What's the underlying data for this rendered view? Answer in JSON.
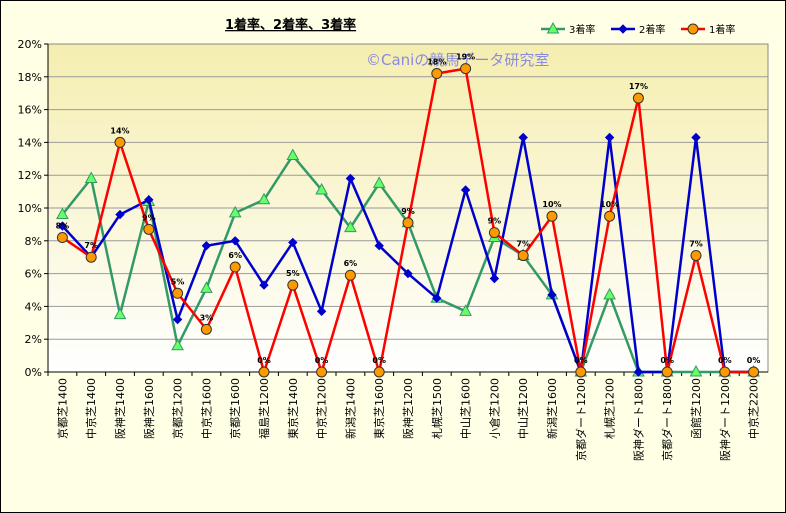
{
  "chart_data": {
    "type": "line",
    "title": "1着率、2着率、3着率",
    "watermark": "©Caniの競馬データ研究室",
    "categories": [
      "京都芝1400",
      "中京芝1400",
      "阪神芝1400",
      "阪神芝1600",
      "京都芝1200",
      "中京芝1600",
      "京都芝1600",
      "福島芝1200",
      "東京芝1400",
      "中京芝1200",
      "新潟芝1400",
      "東京芝1600",
      "阪神芝1200",
      "札幌芝1500",
      "中山芝1600",
      "小倉芝1200",
      "中山芝1200",
      "新潟芝1600",
      "京都ダート1200",
      "札幌芝1200",
      "阪神ダート1800",
      "京都ダート1800",
      "函館芝1200",
      "阪神ダート1200",
      "中京芝2200"
    ],
    "ylim": [
      0,
      20
    ],
    "yticks": [
      0,
      2,
      4,
      6,
      8,
      10,
      12,
      14,
      16,
      18,
      20
    ],
    "ytick_suffix": "%",
    "grid": true,
    "legend_position": "top-right",
    "series": [
      {
        "name": "3着率",
        "color": "#339966",
        "marker": "triangle",
        "marker_fill": "#66ff66",
        "values": [
          9.6,
          11.8,
          3.5,
          10.4,
          1.6,
          5.1,
          9.7,
          10.5,
          13.2,
          11.1,
          8.8,
          11.5,
          9.1,
          4.5,
          3.7,
          8.2,
          7.1,
          4.7,
          0,
          4.7,
          0,
          0,
          0,
          0,
          0
        ]
      },
      {
        "name": "2着率",
        "color": "#0000cc",
        "marker": "diamond",
        "marker_fill": "#0000cc",
        "values": [
          8.9,
          7.0,
          9.6,
          10.5,
          3.2,
          7.7,
          8.0,
          5.3,
          7.9,
          3.7,
          11.8,
          7.7,
          6.0,
          4.5,
          11.1,
          5.7,
          14.3,
          4.7,
          0,
          14.3,
          0,
          0,
          14.3,
          0,
          0
        ]
      },
      {
        "name": "1着率",
        "color": "#ff0000",
        "marker": "circle",
        "marker_fill": "#ff9900",
        "values": [
          8.2,
          7.0,
          14.0,
          8.7,
          4.8,
          2.6,
          6.4,
          0,
          5.3,
          0,
          5.9,
          0,
          9.1,
          18.2,
          18.5,
          8.5,
          7.1,
          9.5,
          0,
          9.5,
          16.7,
          0,
          7.1,
          0,
          0
        ],
        "data_labels": [
          "8%",
          "7%",
          "14%",
          "9%",
          "5%",
          "3%",
          "6%",
          "0%",
          "5%",
          "0%",
          "6%",
          "0%",
          "9%",
          "18%",
          "19%",
          "9%",
          "7%",
          "10%",
          "0%",
          "10%",
          "17%",
          "0%",
          "7%",
          "0%",
          "0%"
        ]
      }
    ]
  }
}
